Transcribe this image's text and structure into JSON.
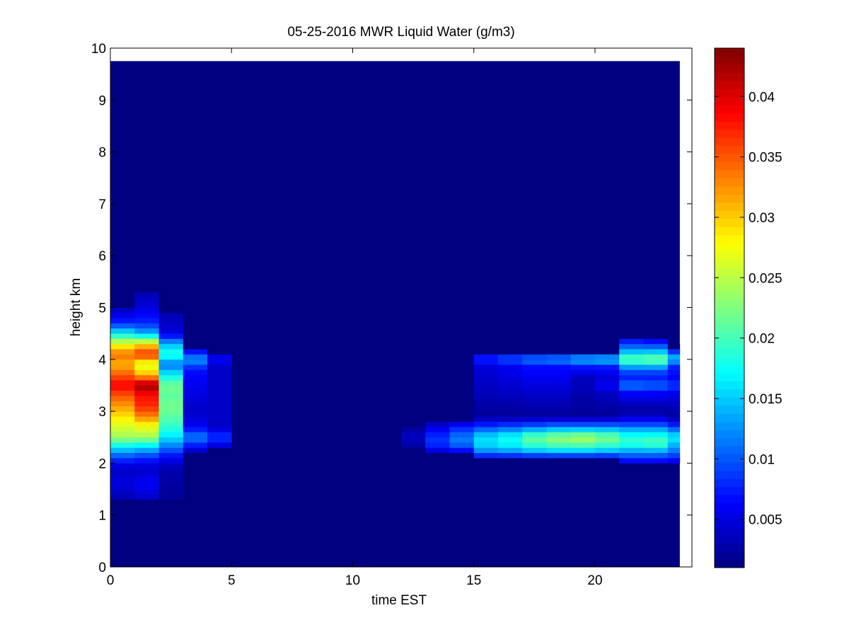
{
  "chart_data": {
    "type": "heatmap",
    "title": "05-25-2016 MWR Liquid Water (g/m3)",
    "xlabel": "time EST",
    "ylabel": "height km",
    "xlim": [
      0,
      24
    ],
    "ylim": [
      0,
      10
    ],
    "xticks": [
      0,
      5,
      10,
      15,
      20
    ],
    "yticks": [
      0,
      1,
      2,
      3,
      4,
      5,
      6,
      7,
      8,
      9,
      10
    ],
    "x_bin_starts": [
      0,
      1,
      2,
      3,
      4,
      5,
      6,
      7,
      8,
      9,
      10,
      11,
      12,
      13,
      14,
      15,
      16,
      17,
      18,
      19,
      20,
      21,
      22,
      23
    ],
    "x_bin_width": 1,
    "data_extent": {
      "x": [
        0,
        23.5
      ],
      "y": [
        0,
        9.75
      ]
    },
    "colorbar": {
      "colormap": "jet",
      "range": [
        0.001,
        0.044
      ],
      "ticks": [
        0.005,
        0.01,
        0.015,
        0.02,
        0.025,
        0.03,
        0.035,
        0.04
      ],
      "tick_labels": [
        "0.005",
        "0.01",
        "0.015",
        "0.02",
        "0.025",
        "0.03",
        "0.035",
        "0.04"
      ]
    },
    "background_value": 0.001,
    "features": [
      {
        "x": 0,
        "y": [
          1.3,
          5.5
        ],
        "profile": [
          [
            1.3,
            0.003
          ],
          [
            1.6,
            0.005
          ],
          [
            1.9,
            0.004
          ],
          [
            2.1,
            0.009
          ],
          [
            2.3,
            0.016
          ],
          [
            2.5,
            0.024
          ],
          [
            2.7,
            0.026
          ],
          [
            2.9,
            0.029
          ],
          [
            3.1,
            0.032
          ],
          [
            3.3,
            0.035
          ],
          [
            3.5,
            0.039
          ],
          [
            3.7,
            0.035
          ],
          [
            3.9,
            0.031
          ],
          [
            4.1,
            0.034
          ],
          [
            4.3,
            0.027
          ],
          [
            4.5,
            0.017
          ],
          [
            4.7,
            0.008
          ],
          [
            5.0,
            0.003
          ]
        ]
      },
      {
        "x": 1,
        "y": [
          1.3,
          5.5
        ],
        "profile": [
          [
            1.3,
            0.004
          ],
          [
            1.6,
            0.006
          ],
          [
            1.9,
            0.004
          ],
          [
            2.1,
            0.008
          ],
          [
            2.3,
            0.015
          ],
          [
            2.5,
            0.024
          ],
          [
            2.7,
            0.027
          ],
          [
            2.9,
            0.033
          ],
          [
            3.1,
            0.037
          ],
          [
            3.3,
            0.038
          ],
          [
            3.5,
            0.043
          ],
          [
            3.7,
            0.031
          ],
          [
            3.9,
            0.026
          ],
          [
            4.1,
            0.037
          ],
          [
            4.3,
            0.029
          ],
          [
            4.5,
            0.014
          ],
          [
            4.7,
            0.008
          ],
          [
            5.0,
            0.005
          ],
          [
            5.3,
            0.003
          ]
        ]
      },
      {
        "x": 2,
        "y": [
          1.3,
          5.3
        ],
        "profile": [
          [
            1.3,
            0.002
          ],
          [
            1.9,
            0.003
          ],
          [
            2.1,
            0.006
          ],
          [
            2.3,
            0.011
          ],
          [
            2.5,
            0.016
          ],
          [
            2.7,
            0.019
          ],
          [
            2.9,
            0.021
          ],
          [
            3.1,
            0.022
          ],
          [
            3.3,
            0.021
          ],
          [
            3.5,
            0.022
          ],
          [
            3.7,
            0.017
          ],
          [
            3.9,
            0.011
          ],
          [
            4.1,
            0.019
          ],
          [
            4.3,
            0.014
          ],
          [
            4.5,
            0.005
          ],
          [
            4.9,
            0.003
          ]
        ]
      },
      {
        "x": 3,
        "y": [
          2.2,
          4.4
        ],
        "profile": [
          [
            2.2,
            0.003
          ],
          [
            2.5,
            0.012
          ],
          [
            2.7,
            0.006
          ],
          [
            3.0,
            0.004
          ],
          [
            3.3,
            0.005
          ],
          [
            3.6,
            0.006
          ],
          [
            3.8,
            0.007
          ],
          [
            4.0,
            0.013
          ],
          [
            4.2,
            0.005
          ]
        ]
      },
      {
        "x": 4,
        "y": [
          2.3,
          4.2
        ],
        "profile": [
          [
            2.3,
            0.004
          ],
          [
            2.5,
            0.009
          ],
          [
            2.7,
            0.004
          ],
          [
            3.9,
            0.004
          ],
          [
            4.0,
            0.007
          ],
          [
            4.1,
            0.004
          ]
        ]
      },
      {
        "x": 12,
        "y": [
          2.3,
          2.7
        ],
        "profile": [
          [
            2.3,
            0.002
          ],
          [
            2.5,
            0.004
          ],
          [
            2.7,
            0.002
          ]
        ]
      },
      {
        "x": 13,
        "y": [
          2.2,
          2.8
        ],
        "profile": [
          [
            2.2,
            0.004
          ],
          [
            2.4,
            0.009
          ],
          [
            2.6,
            0.007
          ],
          [
            2.8,
            0.003
          ]
        ]
      },
      {
        "x": 14,
        "y": [
          2.2,
          2.8
        ],
        "profile": [
          [
            2.2,
            0.005
          ],
          [
            2.4,
            0.012
          ],
          [
            2.6,
            0.01
          ],
          [
            2.8,
            0.004
          ]
        ]
      },
      {
        "x": 15,
        "y": [
          2.1,
          4.2
        ],
        "profile": [
          [
            2.1,
            0.006
          ],
          [
            2.3,
            0.015
          ],
          [
            2.5,
            0.016
          ],
          [
            2.7,
            0.009
          ],
          [
            2.9,
            0.002
          ],
          [
            3.9,
            0.005
          ],
          [
            4.0,
            0.009
          ],
          [
            4.1,
            0.005
          ]
        ]
      },
      {
        "x": 16,
        "y": [
          2.1,
          4.2
        ],
        "profile": [
          [
            2.1,
            0.006
          ],
          [
            2.3,
            0.016
          ],
          [
            2.5,
            0.018
          ],
          [
            2.7,
            0.01
          ],
          [
            2.9,
            0.002
          ],
          [
            3.9,
            0.006
          ],
          [
            4.0,
            0.011
          ],
          [
            4.1,
            0.006
          ]
        ]
      },
      {
        "x": 17,
        "y": [
          2.1,
          4.2
        ],
        "profile": [
          [
            2.1,
            0.006
          ],
          [
            2.3,
            0.018
          ],
          [
            2.5,
            0.022
          ],
          [
            2.7,
            0.011
          ],
          [
            2.9,
            0.002
          ],
          [
            3.9,
            0.007
          ],
          [
            4.0,
            0.013
          ],
          [
            4.1,
            0.006
          ]
        ]
      },
      {
        "x": 18,
        "y": [
          2.1,
          4.2
        ],
        "profile": [
          [
            2.1,
            0.006
          ],
          [
            2.3,
            0.019
          ],
          [
            2.5,
            0.024
          ],
          [
            2.7,
            0.012
          ],
          [
            2.9,
            0.002
          ],
          [
            3.9,
            0.007
          ],
          [
            4.0,
            0.014
          ],
          [
            4.1,
            0.006
          ]
        ]
      },
      {
        "x": 19,
        "y": [
          2.1,
          4.3
        ],
        "profile": [
          [
            2.1,
            0.006
          ],
          [
            2.3,
            0.019
          ],
          [
            2.5,
            0.025
          ],
          [
            2.7,
            0.012
          ],
          [
            2.9,
            0.002
          ],
          [
            3.4,
            0.003
          ],
          [
            3.5,
            0.004
          ],
          [
            3.6,
            0.003
          ],
          [
            3.9,
            0.008
          ],
          [
            4.0,
            0.016
          ],
          [
            4.1,
            0.007
          ]
        ]
      },
      {
        "x": 20,
        "y": [
          2.1,
          4.3
        ],
        "profile": [
          [
            2.1,
            0.006
          ],
          [
            2.3,
            0.018
          ],
          [
            2.5,
            0.023
          ],
          [
            2.7,
            0.012
          ],
          [
            2.9,
            0.002
          ],
          [
            3.4,
            0.004
          ],
          [
            3.5,
            0.007
          ],
          [
            3.6,
            0.004
          ],
          [
            3.9,
            0.008
          ],
          [
            4.0,
            0.017
          ],
          [
            4.1,
            0.007
          ]
        ]
      },
      {
        "x": 21,
        "y": [
          2.0,
          4.5
        ],
        "profile": [
          [
            2.0,
            0.005
          ],
          [
            2.2,
            0.012
          ],
          [
            2.4,
            0.02
          ],
          [
            2.6,
            0.016
          ],
          [
            2.8,
            0.007
          ],
          [
            3.0,
            0.002
          ],
          [
            3.4,
            0.007
          ],
          [
            3.5,
            0.013
          ],
          [
            3.6,
            0.007
          ],
          [
            3.8,
            0.01
          ],
          [
            4.0,
            0.022
          ],
          [
            4.2,
            0.012
          ],
          [
            4.4,
            0.006
          ]
        ]
      },
      {
        "x": 22,
        "y": [
          2.0,
          4.5
        ],
        "profile": [
          [
            2.0,
            0.005
          ],
          [
            2.2,
            0.012
          ],
          [
            2.4,
            0.021
          ],
          [
            2.6,
            0.016
          ],
          [
            2.8,
            0.007
          ],
          [
            3.0,
            0.002
          ],
          [
            3.4,
            0.007
          ],
          [
            3.5,
            0.012
          ],
          [
            3.6,
            0.007
          ],
          [
            3.8,
            0.01
          ],
          [
            4.0,
            0.023
          ],
          [
            4.2,
            0.012
          ],
          [
            4.4,
            0.005
          ]
        ]
      },
      {
        "x": 23,
        "y": [
          2.0,
          4.3
        ],
        "profile": [
          [
            2.0,
            0.005
          ],
          [
            2.3,
            0.013
          ],
          [
            2.5,
            0.017
          ],
          [
            2.7,
            0.009
          ],
          [
            2.9,
            0.002
          ],
          [
            3.4,
            0.006
          ],
          [
            3.5,
            0.01
          ],
          [
            3.6,
            0.006
          ],
          [
            3.9,
            0.008
          ],
          [
            4.0,
            0.016
          ],
          [
            4.2,
            0.006
          ]
        ]
      }
    ]
  }
}
